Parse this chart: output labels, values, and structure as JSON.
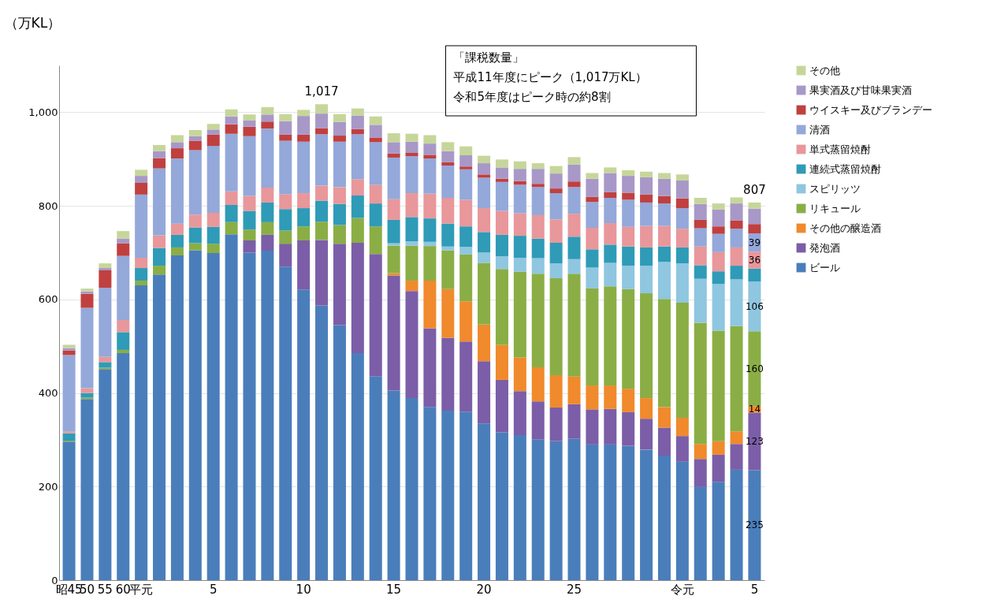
{
  "chart_data": {
    "type": "bar",
    "stacked": true,
    "ylabel": "（万KL）",
    "ylim": [
      0,
      1100
    ],
    "yticks": [
      0,
      200,
      400,
      600,
      800,
      {
        "value": 1000,
        "label": "1,000"
      }
    ],
    "grid": "y",
    "legend": "right",
    "categories": [
      "昭45",
      "50",
      "55",
      "60",
      "平元",
      null,
      null,
      null,
      "5",
      null,
      null,
      null,
      null,
      "10",
      null,
      null,
      null,
      null,
      "15",
      null,
      null,
      null,
      null,
      "20",
      null,
      null,
      null,
      null,
      "25",
      null,
      null,
      null,
      null,
      null,
      "令元",
      null,
      null,
      null,
      "5"
    ],
    "series": [
      {
        "name": "ビール",
        "color": "#4a7ebb",
        "values": [
          296,
          387,
          451,
          485,
          630,
          653,
          694,
          705,
          699,
          739,
          700,
          704,
          670,
          621,
          587,
          545,
          485,
          436,
          405,
          389,
          370,
          362,
          360,
          335,
          316,
          310,
          301,
          297,
          302,
          290,
          290,
          287,
          279,
          266,
          253,
          199,
          210,
          236,
          235
        ],
        "value_labels": [
          null,
          null,
          null,
          null,
          null,
          null,
          null,
          null,
          null,
          null,
          null,
          null,
          null,
          null,
          null,
          null,
          null,
          null,
          null,
          null,
          null,
          null,
          null,
          null,
          null,
          null,
          null,
          null,
          null,
          null,
          null,
          null,
          null,
          null,
          null,
          null,
          null,
          null,
          "235"
        ]
      },
      {
        "name": "発泡酒",
        "color": "#7b5ea7",
        "values": [
          0,
          0,
          0,
          0,
          0,
          0,
          0,
          0,
          0,
          0,
          26,
          34,
          49,
          105,
          140,
          174,
          236,
          261,
          246,
          229,
          168,
          156,
          150,
          133,
          112,
          94,
          81,
          72,
          74,
          75,
          76,
          72,
          66,
          60,
          55,
          60,
          58,
          55,
          123
        ],
        "value_labels": [
          null,
          null,
          null,
          null,
          null,
          null,
          null,
          null,
          null,
          null,
          null,
          null,
          null,
          null,
          null,
          null,
          null,
          null,
          null,
          null,
          null,
          null,
          null,
          null,
          null,
          null,
          null,
          null,
          null,
          null,
          null,
          null,
          null,
          null,
          null,
          null,
          null,
          null,
          "123"
        ]
      },
      {
        "name": "その他の醸造酒",
        "color": "#f08a2c",
        "values": [
          0,
          0,
          0,
          0,
          0,
          0,
          0,
          0,
          0,
          0,
          0,
          0,
          0,
          0,
          0,
          0,
          0,
          0,
          5,
          22,
          102,
          104,
          86,
          78,
          75,
          72,
          73,
          69,
          59,
          51,
          50,
          50,
          44,
          44,
          39,
          32,
          29,
          27,
          14
        ],
        "value_labels": [
          null,
          null,
          null,
          null,
          null,
          null,
          null,
          null,
          null,
          null,
          null,
          null,
          null,
          null,
          null,
          null,
          null,
          null,
          null,
          null,
          null,
          null,
          null,
          null,
          null,
          null,
          null,
          null,
          null,
          null,
          null,
          null,
          null,
          null,
          null,
          null,
          null,
          null,
          "14"
        ]
      },
      {
        "name": "リキュール",
        "color": "#8aae45",
        "values": [
          2,
          3,
          3,
          7,
          10,
          19,
          17,
          15,
          20,
          26,
          23,
          27,
          28,
          30,
          39,
          40,
          53,
          59,
          59,
          75,
          74,
          83,
          100,
          132,
          162,
          183,
          200,
          207,
          220,
          208,
          212,
          213,
          224,
          231,
          246,
          259,
          236,
          225,
          160
        ],
        "value_labels": [
          null,
          null,
          null,
          null,
          null,
          null,
          null,
          null,
          null,
          null,
          null,
          null,
          null,
          null,
          null,
          null,
          null,
          null,
          null,
          null,
          null,
          null,
          null,
          null,
          null,
          null,
          null,
          null,
          null,
          null,
          null,
          null,
          null,
          null,
          null,
          null,
          null,
          null,
          "160"
        ]
      },
      {
        "name": "スピリッツ",
        "color": "#8fc6e0",
        "values": [
          0,
          0,
          0,
          0,
          0,
          0,
          0,
          0,
          0,
          0,
          0,
          0,
          0,
          0,
          0,
          0,
          0,
          0,
          5,
          9,
          9,
          8,
          16,
          22,
          27,
          30,
          33,
          32,
          31,
          44,
          50,
          50,
          59,
          79,
          84,
          94,
          100,
          100,
          106
        ],
        "value_labels": [
          null,
          null,
          null,
          null,
          null,
          null,
          null,
          null,
          null,
          null,
          null,
          null,
          null,
          null,
          null,
          null,
          null,
          null,
          null,
          null,
          null,
          null,
          null,
          null,
          null,
          null,
          null,
          null,
          null,
          null,
          null,
          null,
          null,
          null,
          null,
          null,
          null,
          null,
          "106"
        ]
      },
      {
        "name": "連続式蒸留焼酎",
        "color": "#2f9bb7",
        "values": [
          16,
          10,
          12,
          38,
          27,
          38,
          27,
          34,
          36,
          37,
          40,
          42,
          46,
          39,
          45,
          45,
          48,
          49,
          50,
          52,
          50,
          49,
          44,
          44,
          46,
          47,
          42,
          44,
          48,
          39,
          39,
          41,
          39,
          33,
          34,
          29,
          27,
          29,
          28
        ]
      },
      {
        "name": "単式蒸留焼酎",
        "color": "#e8979b",
        "values": [
          4,
          10,
          11,
          26,
          22,
          27,
          24,
          27,
          30,
          29,
          32,
          32,
          32,
          32,
          32,
          36,
          35,
          40,
          44,
          51,
          53,
          55,
          57,
          51,
          51,
          48,
          50,
          50,
          49,
          46,
          46,
          42,
          46,
          44,
          40,
          40,
          41,
          39,
          36
        ],
        "value_labels": [
          null,
          null,
          null,
          null,
          null,
          null,
          null,
          null,
          null,
          null,
          null,
          null,
          null,
          null,
          null,
          null,
          null,
          null,
          null,
          null,
          null,
          null,
          null,
          null,
          null,
          null,
          null,
          null,
          null,
          null,
          null,
          null,
          null,
          null,
          null,
          null,
          null,
          null,
          "36"
        ]
      },
      {
        "name": "清酒",
        "color": "#94a8da",
        "values": [
          163,
          172,
          148,
          137,
          135,
          143,
          139,
          138,
          143,
          123,
          128,
          126,
          114,
          110,
          110,
          97,
          96,
          91,
          89,
          79,
          75,
          69,
          65,
          65,
          62,
          61,
          60,
          56,
          57,
          55,
          54,
          58,
          50,
          48,
          44,
          39,
          39,
          40,
          39
        ],
        "value_labels": [
          null,
          null,
          null,
          null,
          null,
          null,
          null,
          null,
          null,
          null,
          null,
          null,
          null,
          null,
          null,
          null,
          null,
          null,
          null,
          null,
          null,
          null,
          null,
          null,
          null,
          null,
          null,
          null,
          null,
          null,
          null,
          null,
          null,
          null,
          null,
          null,
          null,
          null,
          "39"
        ]
      },
      {
        "name": "ウイスキー及びブランデー",
        "color": "#c0403f",
        "values": [
          10,
          30,
          37,
          27,
          25,
          22,
          22,
          20,
          24,
          20,
          20,
          15,
          13,
          15,
          13,
          13,
          11,
          10,
          9,
          7,
          8,
          7,
          6,
          7,
          7,
          8,
          7,
          10,
          12,
          11,
          12,
          15,
          17,
          16,
          21,
          18,
          16,
          18,
          20
        ]
      },
      {
        "name": "果実酒及び甘味果実酒",
        "color": "#a898c8",
        "values": [
          5,
          5,
          5,
          10,
          15,
          15,
          13,
          10,
          11,
          17,
          13,
          15,
          29,
          40,
          31,
          29,
          29,
          27,
          24,
          24,
          24,
          24,
          24,
          24,
          24,
          26,
          32,
          32,
          36,
          39,
          41,
          36,
          37,
          37,
          38,
          34,
          36,
          36,
          33
        ]
      },
      {
        "name": "その他",
        "color": "#c6d69a",
        "values": [
          7,
          6,
          10,
          16,
          13,
          13,
          15,
          13,
          12,
          15,
          13,
          16,
          15,
          13,
          20,
          17,
          15,
          18,
          19,
          17,
          18,
          19,
          19,
          16,
          17,
          16,
          12,
          16,
          16,
          12,
          12,
          12,
          12,
          12,
          13,
          13,
          13,
          13,
          13
        ]
      }
    ],
    "totals": [
      null,
      null,
      null,
      null,
      null,
      null,
      null,
      null,
      null,
      null,
      null,
      null,
      null,
      null,
      "1,017",
      null,
      null,
      null,
      null,
      null,
      null,
      null,
      null,
      null,
      null,
      null,
      null,
      null,
      null,
      null,
      null,
      null,
      null,
      null,
      null,
      null,
      null,
      null,
      "807"
    ],
    "annotations": [
      "「課税数量」",
      "平成11年度にピーク（1,017万KL）",
      "令和5年度はピーク時の約8割"
    ]
  }
}
